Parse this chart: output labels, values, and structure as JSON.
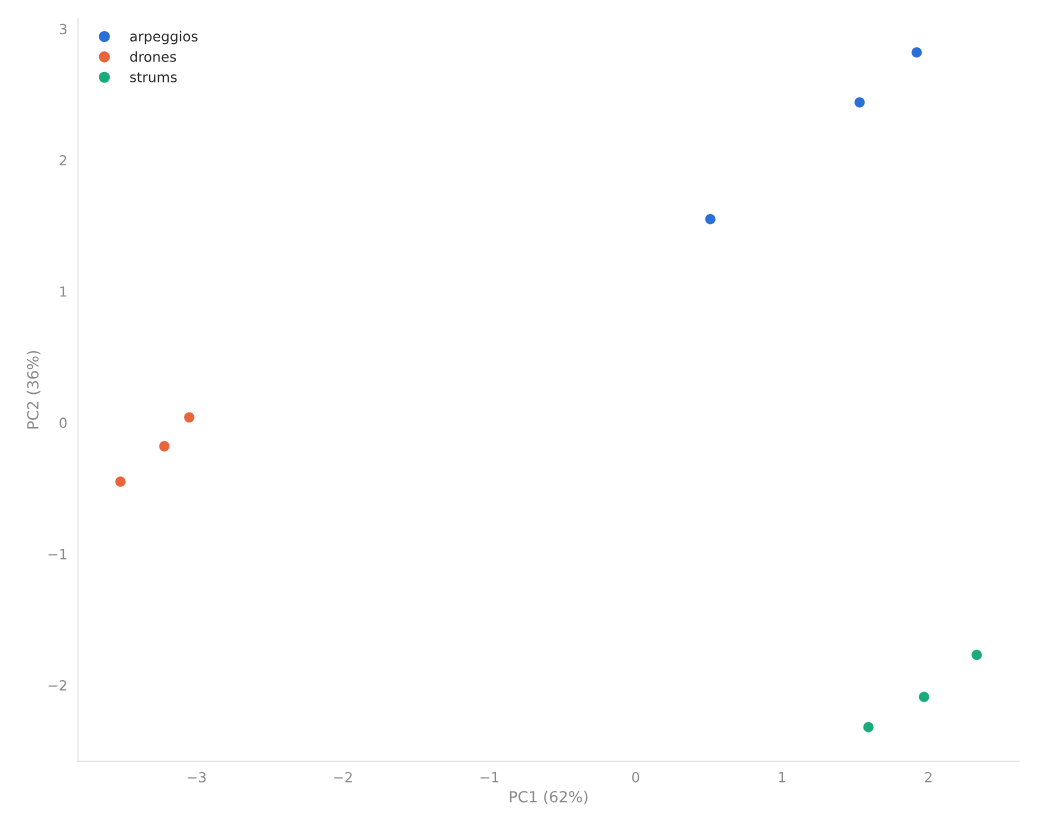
{
  "chart_data": {
    "type": "scatter",
    "xlabel": "PC1 (62%)",
    "ylabel": "PC2 (36%)",
    "series": [
      {
        "name": "arpeggios",
        "color": "#2a6fd6",
        "x": [
          0.51,
          1.53,
          1.92
        ],
        "values": [
          1.55,
          2.44,
          2.82
        ]
      },
      {
        "name": "drones",
        "color": "#e8643a",
        "x": [
          -3.52,
          -3.22,
          -3.05
        ],
        "values": [
          -0.45,
          -0.18,
          0.04
        ]
      },
      {
        "name": "strums",
        "color": "#1aab7a",
        "x": [
          1.59,
          1.97,
          2.33
        ],
        "values": [
          -2.32,
          -2.09,
          -1.77
        ]
      }
    ],
    "xlim": [
      -3.81,
      2.62
    ],
    "ylim": [
      -2.58,
      3.08
    ],
    "xticks": [
      {
        "value": -3,
        "label": "−3"
      },
      {
        "value": -2,
        "label": "−2"
      },
      {
        "value": -1,
        "label": "−1"
      },
      0,
      1,
      2
    ],
    "yticks": [
      {
        "value": -2,
        "label": "−2"
      },
      {
        "value": -1,
        "label": "−1"
      },
      0,
      1,
      2,
      3
    ],
    "legend": "top left",
    "marker": "circle",
    "grid": false
  }
}
